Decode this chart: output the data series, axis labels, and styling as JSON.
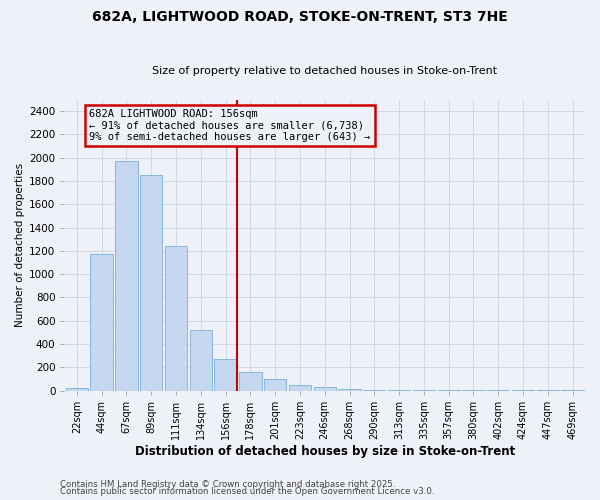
{
  "title": "682A, LIGHTWOOD ROAD, STOKE-ON-TRENT, ST3 7HE",
  "subtitle": "Size of property relative to detached houses in Stoke-on-Trent",
  "xlabel": "Distribution of detached houses by size in Stoke-on-Trent",
  "ylabel": "Number of detached properties",
  "categories": [
    "22sqm",
    "44sqm",
    "67sqm",
    "89sqm",
    "111sqm",
    "134sqm",
    "156sqm",
    "178sqm",
    "201sqm",
    "223sqm",
    "246sqm",
    "268sqm",
    "290sqm",
    "313sqm",
    "335sqm",
    "357sqm",
    "380sqm",
    "402sqm",
    "424sqm",
    "447sqm",
    "469sqm"
  ],
  "values": [
    25,
    1170,
    1970,
    1850,
    1240,
    520,
    270,
    155,
    95,
    45,
    30,
    15,
    8,
    5,
    3,
    3,
    2,
    2,
    1,
    1,
    1
  ],
  "bar_color": "#c5d8f0",
  "bar_edge_color": "#7ab0d4",
  "highlight_index": 6,
  "highlight_line_color": "#cc0000",
  "annotation_line1": "682A LIGHTWOOD ROAD: 156sqm",
  "annotation_line2": "← 91% of detached houses are smaller (6,738)",
  "annotation_line3": "9% of semi-detached houses are larger (643) →",
  "annotation_box_edge_color": "#cc0000",
  "ylim": [
    0,
    2500
  ],
  "yticks": [
    0,
    200,
    400,
    600,
    800,
    1000,
    1200,
    1400,
    1600,
    1800,
    2000,
    2200,
    2400
  ],
  "footer_line1": "Contains HM Land Registry data © Crown copyright and database right 2025.",
  "footer_line2": "Contains public sector information licensed under the Open Government Licence v3.0.",
  "grid_color": "#d0d8e8",
  "background_color": "#eef2f8"
}
